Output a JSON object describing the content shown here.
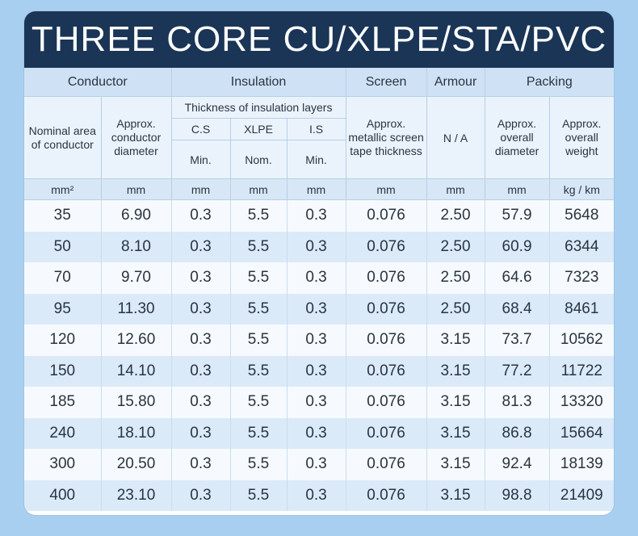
{
  "title": "THREE CORE CU/XLPE/STA/PVC",
  "groups": {
    "conductor": "Conductor",
    "insulation": "Insulation",
    "screen": "Screen",
    "armour": "Armour",
    "packing": "Packing"
  },
  "subheaders": {
    "nominal_area": "Nominal area of conductor",
    "conductor_diameter": "Approx. conductor diameter",
    "thickness": "Thickness of insulation layers",
    "cs": "C.S",
    "xlpe": "XLPE",
    "is": "I.S",
    "cs_type": "Min.",
    "xlpe_type": "Nom.",
    "is_type": "Min.",
    "screen_tape": "Approx. metallic screen tape thickness",
    "armour_na": "N / A",
    "overall_diameter": "Approx. overall diameter",
    "overall_weight": "Approx. overall weight"
  },
  "units": [
    "mm²",
    "mm",
    "mm",
    "mm",
    "mm",
    "mm",
    "mm",
    "mm",
    "kg / km"
  ],
  "rows": [
    [
      "35",
      "6.90",
      "0.3",
      "5.5",
      "0.3",
      "0.076",
      "2.50",
      "57.9",
      "5648"
    ],
    [
      "50",
      "8.10",
      "0.3",
      "5.5",
      "0.3",
      "0.076",
      "2.50",
      "60.9",
      "6344"
    ],
    [
      "70",
      "9.70",
      "0.3",
      "5.5",
      "0.3",
      "0.076",
      "2.50",
      "64.6",
      "7323"
    ],
    [
      "95",
      "11.30",
      "0.3",
      "5.5",
      "0.3",
      "0.076",
      "2.50",
      "68.4",
      "8461"
    ],
    [
      "120",
      "12.60",
      "0.3",
      "5.5",
      "0.3",
      "0.076",
      "3.15",
      "73.7",
      "10562"
    ],
    [
      "150",
      "14.10",
      "0.3",
      "5.5",
      "0.3",
      "0.076",
      "3.15",
      "77.2",
      "11722"
    ],
    [
      "185",
      "15.80",
      "0.3",
      "5.5",
      "0.3",
      "0.076",
      "3.15",
      "81.3",
      "13320"
    ],
    [
      "240",
      "18.10",
      "0.3",
      "5.5",
      "0.3",
      "0.076",
      "3.15",
      "86.8",
      "15664"
    ],
    [
      "300",
      "20.50",
      "0.3",
      "5.5",
      "0.3",
      "0.076",
      "3.15",
      "92.4",
      "18139"
    ],
    [
      "400",
      "23.10",
      "0.3",
      "5.5",
      "0.3",
      "0.076",
      "3.15",
      "98.8",
      "21409"
    ]
  ]
}
